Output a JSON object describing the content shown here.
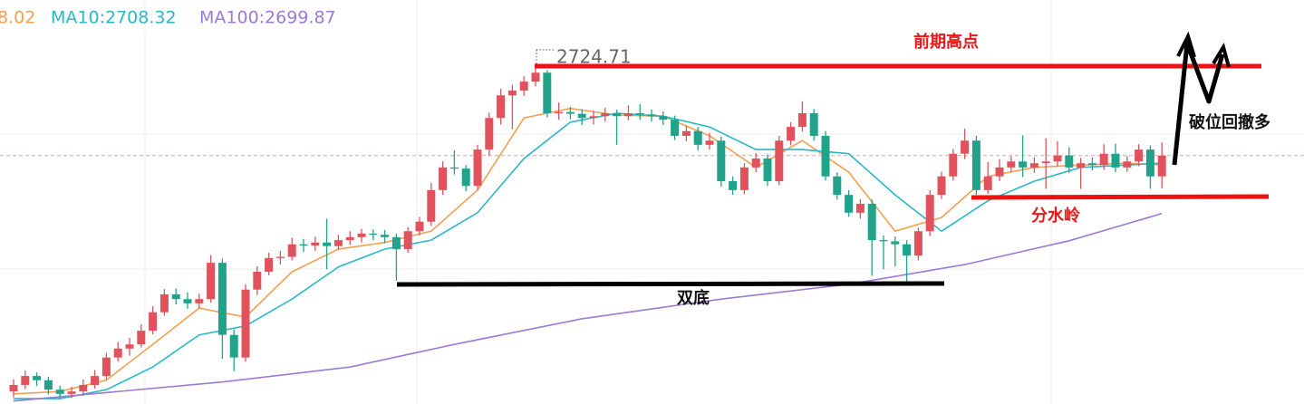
{
  "chart_data": {
    "type": "candlestick",
    "ylim": [
      2667.9,
      2735.7
    ],
    "open": [
      2670.0,
      2671.1,
      2672.6,
      2671.9,
      2670.3,
      2669.6,
      2670.0,
      2671.1,
      2672.6,
      2675.7,
      2677.2,
      2677.9,
      2680.2,
      2683.3,
      2686.3,
      2685.5,
      2684.8,
      2685.5,
      2691.6,
      2679.5,
      2675.7,
      2687.1,
      2690.1,
      2692.4,
      2692.6,
      2694.7,
      2694.5,
      2695.0,
      2694.4,
      2695.4,
      2695.9,
      2696.5,
      2696.3,
      2695.9,
      2693.9,
      2696.9,
      2698.5,
      2703.8,
      2707.6,
      2707.4,
      2704.5,
      2710.6,
      2715.9,
      2719.7,
      2720.5,
      2722.0,
      2723.5,
      2716.7,
      2716.9,
      2716.6,
      2715.9,
      2716.2,
      2716.7,
      2716.2,
      2716.7,
      2716.5,
      2716.2,
      2715.6,
      2712.9,
      2713.7,
      2711.4,
      2712.1,
      2705.3,
      2703.8,
      2707.6,
      2709.1,
      2705.3,
      2712.1,
      2714.4,
      2716.7,
      2712.9,
      2706.1,
      2703.0,
      2700.0,
      2701.5,
      2695.4,
      2695.2,
      2694.7,
      2692.8,
      2696.9,
      2703.0,
      2706.1,
      2709.9,
      2712.1,
      2703.8,
      2706.1,
      2707.6,
      2708.6,
      2707.6,
      2708.3,
      2708.6,
      2709.6,
      2707.6,
      2708.3,
      2708.0,
      2709.9,
      2707.6,
      2708.6,
      2710.6,
      2706.1
    ],
    "high": [
      2672.0,
      2673.5,
      2673.2,
      2672.5,
      2671.0,
      2670.8,
      2672.0,
      2673.6,
      2676.5,
      2678.3,
      2679.0,
      2681.3,
      2684.3,
      2687.2,
      2687.3,
      2686.6,
      2686.4,
      2692.9,
      2692.3,
      2680.4,
      2688.0,
      2691.0,
      2693.3,
      2693.6,
      2695.8,
      2695.6,
      2696.0,
      2699.0,
      2696.3,
      2696.9,
      2697.3,
      2697.2,
      2697.1,
      2696.5,
      2697.6,
      2699.3,
      2705.0,
      2708.6,
      2710.5,
      2708.0,
      2711.4,
      2716.8,
      2720.8,
      2721.5,
      2722.9,
      2724.71,
      2723.9,
      2718.5,
      2717.8,
      2717.4,
      2717.1,
      2717.6,
      2717.3,
      2718.0,
      2718.2,
      2717.3,
      2717.0,
      2716.3,
      2714.6,
      2714.4,
      2713.4,
      2712.8,
      2706.1,
      2708.3,
      2710.0,
      2709.8,
      2712.9,
      2715.2,
      2718.7,
      2717.4,
      2713.7,
      2706.8,
      2703.8,
      2702.3,
      2702.2,
      2696.2,
      2696.0,
      2695.4,
      2697.5,
      2703.8,
      2706.9,
      2710.7,
      2714.1,
      2712.9,
      2708.5,
      2709.0,
      2709.5,
      2713.0,
      2709.3,
      2712.5,
      2712.0,
      2711.0,
      2709.2,
      2709.3,
      2711.5,
      2711.6,
      2709.5,
      2711.5,
      2711.3,
      2711.8
    ],
    "low": [
      2669.0,
      2670.4,
      2670.9,
      2669.5,
      2668.7,
      2668.9,
      2669.3,
      2670.5,
      2672.0,
      2675.0,
      2676.0,
      2677.4,
      2679.6,
      2682.7,
      2684.6,
      2683.9,
      2684.0,
      2684.9,
      2675.5,
      2673.4,
      2675.0,
      2686.2,
      2689.5,
      2691.3,
      2692.0,
      2693.4,
      2693.6,
      2690.5,
      2693.8,
      2694.6,
      2695.0,
      2695.4,
      2694.9,
      2688.6,
      2693.3,
      2696.2,
      2697.8,
      2703.0,
      2706.4,
      2703.6,
      2703.8,
      2709.5,
      2714.8,
      2714.0,
      2719.6,
      2721.2,
      2716.0,
      2715.6,
      2715.7,
      2714.7,
      2714.8,
      2715.3,
      2711.4,
      2715.5,
      2715.6,
      2715.3,
      2714.7,
      2712.2,
      2712.0,
      2710.5,
      2710.6,
      2704.4,
      2703.0,
      2703.1,
      2706.8,
      2704.5,
      2704.6,
      2711.3,
      2713.6,
      2712.1,
      2705.4,
      2702.2,
      2699.3,
      2699.0,
      2689.4,
      2690.5,
      2691.0,
      2688.3,
      2692.0,
      2696.1,
      2702.3,
      2705.4,
      2709.0,
      2703.0,
      2703.2,
      2705.3,
      2706.8,
      2706.0,
      2706.7,
      2704.0,
      2707.8,
      2706.7,
      2704.0,
      2707.1,
      2707.2,
      2706.8,
      2706.9,
      2707.8,
      2704.0,
      2704.1
    ],
    "close": [
      2671.1,
      2672.6,
      2671.9,
      2670.3,
      2669.6,
      2670.0,
      2671.1,
      2672.6,
      2675.7,
      2677.2,
      2677.9,
      2680.2,
      2683.3,
      2686.3,
      2685.5,
      2684.8,
      2685.5,
      2691.6,
      2679.5,
      2675.7,
      2687.1,
      2690.1,
      2692.4,
      2692.6,
      2694.7,
      2694.5,
      2695.0,
      2694.4,
      2695.4,
      2695.9,
      2696.5,
      2696.3,
      2695.9,
      2693.9,
      2696.9,
      2698.5,
      2703.8,
      2707.6,
      2707.4,
      2704.5,
      2710.6,
      2715.9,
      2719.7,
      2720.5,
      2722.0,
      2723.5,
      2716.7,
      2716.9,
      2716.6,
      2715.9,
      2716.2,
      2716.7,
      2716.2,
      2716.7,
      2716.5,
      2716.2,
      2715.6,
      2712.9,
      2713.7,
      2711.4,
      2712.1,
      2705.3,
      2703.8,
      2707.6,
      2709.1,
      2705.3,
      2712.1,
      2714.4,
      2716.7,
      2712.9,
      2706.1,
      2703.0,
      2700.0,
      2701.5,
      2695.4,
      2695.2,
      2694.7,
      2692.8,
      2696.9,
      2703.0,
      2706.1,
      2709.9,
      2712.1,
      2703.8,
      2706.1,
      2707.6,
      2708.6,
      2707.6,
      2708.3,
      2708.6,
      2709.6,
      2707.6,
      2708.3,
      2708.0,
      2709.9,
      2707.6,
      2708.6,
      2710.6,
      2706.1,
      2709.6
    ],
    "up_color": "#e0525c",
    "down_color": "#21a38b",
    "series": [
      {
        "name": "8.02",
        "color": "#f2a04e",
        "x": [
          0,
          4,
          8,
          12,
          16,
          20,
          24,
          28,
          32,
          36,
          40,
          44,
          48,
          52,
          56,
          60,
          64,
          68,
          72,
          76,
          80,
          84,
          88,
          92,
          96,
          99
        ],
        "values": [
          2669.6,
          2670.0,
          2671.9,
          2677.9,
          2684.0,
          2682.5,
          2690.1,
          2693.9,
          2695.0,
          2696.9,
          2703.8,
          2715.9,
          2717.5,
          2716.4,
          2716.2,
          2712.9,
          2707.6,
          2712.1,
          2706.8,
          2696.9,
          2699.2,
          2706.1,
          2707.6,
          2708.0,
          2708.3,
          2708.02
        ]
      },
      {
        "name": "MA10:2708.32",
        "color": "#2ab8c8",
        "x": [
          0,
          4,
          8,
          12,
          16,
          20,
          24,
          28,
          32,
          36,
          40,
          44,
          48,
          52,
          56,
          60,
          64,
          68,
          72,
          76,
          80,
          84,
          88,
          92,
          96,
          99
        ],
        "values": [
          2668.8,
          2668.8,
          2670.3,
          2674.1,
          2679.5,
          2681.0,
          2685.5,
          2690.9,
          2693.9,
          2695.4,
          2700.0,
          2709.1,
          2715.2,
          2716.7,
          2716.2,
          2714.4,
          2710.6,
          2710.6,
          2709.9,
          2703.0,
          2696.9,
          2702.0,
          2705.3,
          2707.6,
          2708.0,
          2708.32
        ]
      },
      {
        "name": "MA100:2699.87",
        "color": "#9b7ad8",
        "x": [
          0,
          18,
          29,
          38,
          49,
          61,
          72,
          82,
          91,
          99
        ],
        "values": [
          2668.4,
          2671.6,
          2674.1,
          2677.9,
          2682.2,
          2685.5,
          2688.0,
          2691.3,
          2695.3,
          2699.87
        ]
      }
    ],
    "annotations": [
      "前期高点",
      "分水岭",
      "双底",
      "破位回撤多"
    ]
  }
}
